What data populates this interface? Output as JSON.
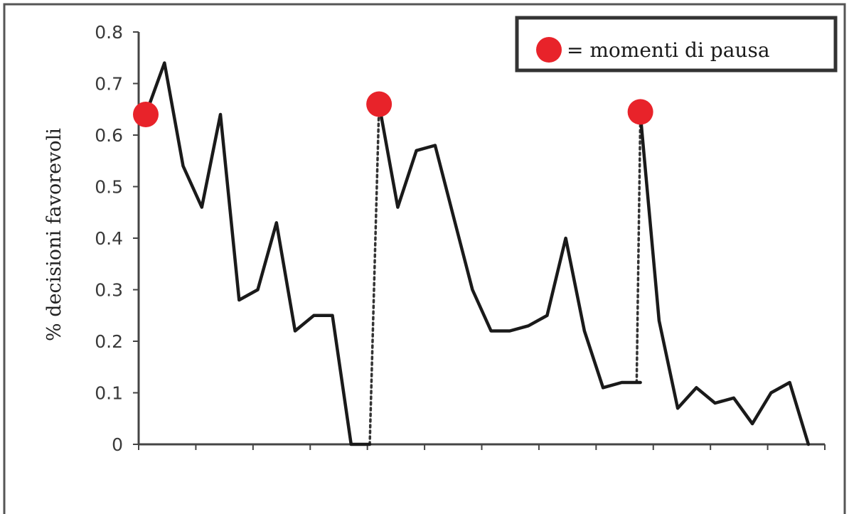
{
  "chart_data": {
    "type": "line",
    "title": "",
    "xlabel": "",
    "ylabel": "% decisioni favorevoli",
    "ylim": [
      0,
      0.8
    ],
    "y_ticks": [
      "0",
      "0.1",
      "0.2",
      "0.3",
      "0.4",
      "0.5",
      "0.6",
      "0.7",
      "0.8"
    ],
    "x_range": [
      0,
      36
    ],
    "grid": false,
    "legend": {
      "position": "top-right",
      "label": "= momenti di pausa",
      "marker_color": "#e8232a"
    },
    "line_color": "#1a1a1a",
    "series": [
      {
        "segment": 1,
        "x": [
          0,
          1,
          2,
          3,
          4,
          5,
          6,
          7,
          8,
          9,
          10,
          11,
          12
        ],
        "y": [
          0.64,
          0.74,
          0.54,
          0.46,
          0.64,
          0.28,
          0.3,
          0.43,
          0.22,
          0.25,
          0.25,
          0.0,
          0.0
        ]
      },
      {
        "segment": 2,
        "x": [
          12.5,
          13.5,
          14.5,
          15.5,
          16.5,
          17.5,
          18.5,
          19.5,
          20.5,
          21.5,
          22.5,
          23.5,
          24.5,
          25.5,
          26.5
        ],
        "y": [
          0.66,
          0.46,
          0.57,
          0.58,
          0.44,
          0.3,
          0.22,
          0.22,
          0.23,
          0.25,
          0.4,
          0.22,
          0.11,
          0.12,
          0.12
        ]
      },
      {
        "segment": 3,
        "x": [
          26.5,
          27.5,
          28.5,
          29.5,
          30.5,
          31.5,
          32.5,
          33.5,
          34.5,
          35.5
        ],
        "y": [
          0.64,
          0.24,
          0.07,
          0.11,
          0.08,
          0.09,
          0.04,
          0.1,
          0.12,
          0.0
        ]
      }
    ],
    "pause_connectors": [
      {
        "from": [
          12,
          0.0
        ],
        "to": [
          12.5,
          0.66
        ]
      },
      {
        "from": [
          26.3,
          0.12
        ],
        "to": [
          26.5,
          0.64
        ]
      }
    ],
    "pause_points": [
      {
        "x": 0,
        "y": 0.64
      },
      {
        "x": 12.5,
        "y": 0.66
      },
      {
        "x": 26.5,
        "y": 0.645
      }
    ]
  }
}
